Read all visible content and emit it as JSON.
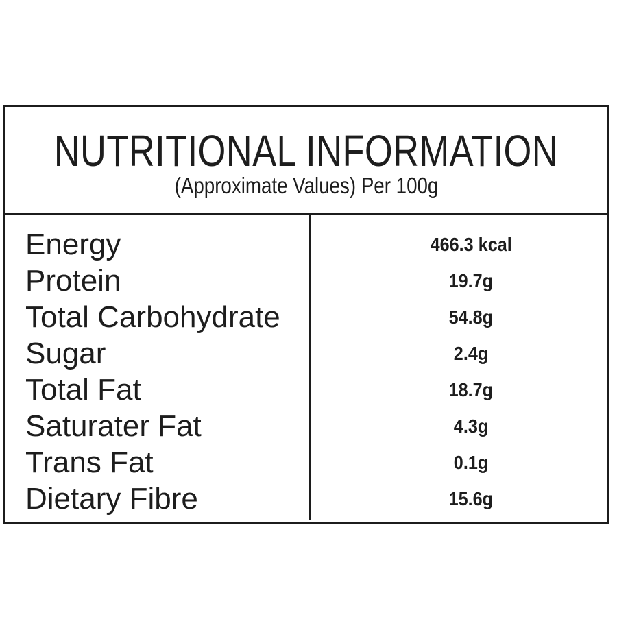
{
  "header": {
    "title": "NUTRITIONAL INFORMATION",
    "subtitle": "(Approximate Values) Per 100g"
  },
  "table": {
    "rows": [
      {
        "label": "Energy",
        "value": "466.3 kcal"
      },
      {
        "label": "Protein",
        "value": "19.7g"
      },
      {
        "label": "Total Carbohydrate",
        "value": "54.8g"
      },
      {
        "label": "Sugar",
        "value": "2.4g"
      },
      {
        "label": "Total Fat",
        "value": "18.7g"
      },
      {
        "label": "Saturater Fat",
        "value": "4.3g"
      },
      {
        "label": "Trans Fat",
        "value": "0.1g"
      },
      {
        "label": "Dietary Fibre",
        "value": "15.6g"
      }
    ]
  },
  "colors": {
    "border": "#1c1c1c",
    "text": "#1d1d1d",
    "background": "#ffffff"
  }
}
